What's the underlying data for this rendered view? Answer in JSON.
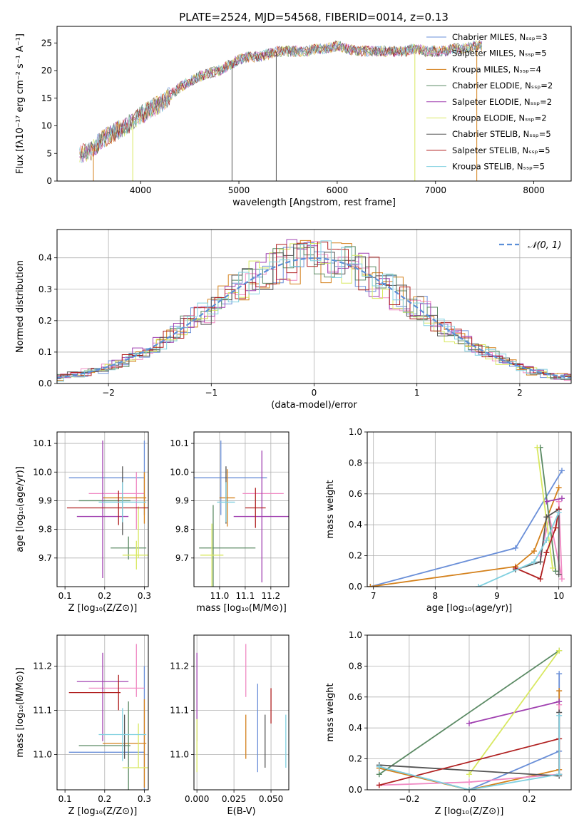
{
  "figure": {
    "title": "PLATE=2524, MJD=54568, FIBERID=0014, z=0.13"
  },
  "legend_entries": [
    {
      "label": "Chabrier MILES, Nₛₛₚ=3",
      "color": "#6a8fd8"
    },
    {
      "label": "Salpeter MILES, Nₛₛₚ=5",
      "color": "#f08ac4"
    },
    {
      "label": "Kroupa MILES, Nₛₛₚ=4",
      "color": "#d4811c"
    },
    {
      "label": "Chabrier ELODIE, Nₛₛₚ=2",
      "color": "#5b8a64"
    },
    {
      "label": "Salpeter ELODIE, Nₛₛₚ=2",
      "color": "#a040b0"
    },
    {
      "label": "Kroupa ELODIE, Nₛₛₚ=2",
      "color": "#d8e860"
    },
    {
      "label": "Chabrier STELIB, Nₛₛₚ=5",
      "color": "#555555"
    },
    {
      "label": "Salpeter STELIB, Nₛₛₚ=5",
      "color": "#b02020"
    },
    {
      "label": "Kroupa STELIB, Nₛₛₚ=5",
      "color": "#80d0e0"
    }
  ],
  "chart_data": [
    {
      "type": "line",
      "id": "spectrum",
      "xlabel": "wavelength [Angstrom, rest frame]",
      "ylabel": "Flux [fλ10⁻¹⁷ erg cm⁻² s⁻¹ A⁻¹]",
      "xlim": [
        3150,
        8380
      ],
      "ylim": [
        0,
        28
      ],
      "xticks": [
        4000,
        5000,
        6000,
        7000,
        8000
      ],
      "yticks": [
        0,
        5,
        10,
        15,
        20,
        25
      ],
      "grid": false,
      "legend": "top-right",
      "series_points": {
        "x": [
          3380,
          3500,
          3600,
          3700,
          3800,
          3900,
          4000,
          4100,
          4200,
          4300,
          4400,
          4500,
          4600,
          4700,
          4800,
          4900,
          5000,
          5100,
          5200,
          5300,
          5400,
          5500,
          5600,
          5700,
          5800,
          5900,
          6000,
          6100,
          6200,
          6300,
          6400,
          6500,
          6600,
          6700,
          6800,
          6900,
          7000,
          7100,
          7200,
          7300,
          7400
        ],
        "y": [
          5,
          5.5,
          7.5,
          8.5,
          9.5,
          10.5,
          12,
          13,
          14,
          15.5,
          17,
          18,
          19,
          19.5,
          20,
          21,
          22,
          22.5,
          22.5,
          23,
          23.5,
          23.5,
          23.5,
          23.5,
          24,
          24,
          24.5,
          24,
          23.5,
          23.5,
          23.5,
          23.5,
          23.5,
          23.5,
          24,
          23.5,
          23.5,
          23.5,
          24,
          24,
          24.5
        ]
      },
      "drop_lines": [
        3520,
        3920,
        4930,
        5380,
        6790,
        7420
      ]
    },
    {
      "type": "line",
      "id": "residual-hist",
      "xlabel": "(data-model)/error",
      "ylabel": "Normed distribution",
      "xlim": [
        -2.5,
        2.5
      ],
      "ylim": [
        0,
        0.49
      ],
      "xticks": [
        -2,
        -1,
        0,
        1,
        2
      ],
      "yticks": [
        0.0,
        0.1,
        0.2,
        0.3,
        0.4
      ],
      "grid": true,
      "legend": "top-right",
      "reference_label": "𝒩(0, 1)",
      "reference": {
        "mean": 0,
        "sigma": 1
      }
    },
    {
      "type": "scatter",
      "id": "z-age",
      "xlabel": "Z [log₁₀(Z/Z⊙)]",
      "ylabel": "age  [log₁₀(age/yr)]",
      "xlim": [
        0.08,
        0.31
      ],
      "ylim": [
        9.6,
        10.14
      ],
      "xticks": [
        0.1,
        0.2,
        0.3
      ],
      "yticks": [
        9.7,
        9.8,
        9.9,
        10.0,
        10.1
      ],
      "grid": true,
      "points": [
        {
          "x": 0.205,
          "y": 9.98,
          "xerr": 0.095,
          "yerr": 0.0,
          "color": "#6a8fd8"
        },
        {
          "x": 0.3,
          "y": 9.98,
          "xerr": 0.0,
          "yerr": 0.13,
          "color": "#6a8fd8"
        },
        {
          "x": 0.23,
          "y": 9.925,
          "xerr": 0.07,
          "yerr": 0.0,
          "color": "#f08ac4"
        },
        {
          "x": 0.28,
          "y": 9.9,
          "xerr": 0.0,
          "yerr": 0.1,
          "color": "#f08ac4"
        },
        {
          "x": 0.25,
          "y": 9.91,
          "xerr": 0.055,
          "yerr": 0.0,
          "color": "#d4811c"
        },
        {
          "x": 0.3,
          "y": 9.91,
          "xerr": 0.0,
          "yerr": 0.09,
          "color": "#d4811c"
        },
        {
          "x": 0.2,
          "y": 9.9,
          "xerr": 0.065,
          "yerr": 0.0,
          "color": "#5b8a64"
        },
        {
          "x": 0.26,
          "y": 9.735,
          "xerr": 0.045,
          "yerr": 0.04,
          "color": "#5b8a64"
        },
        {
          "x": 0.195,
          "y": 9.845,
          "xerr": 0.065,
          "yerr": 0.0,
          "color": "#a040b0"
        },
        {
          "x": 0.195,
          "y": 9.87,
          "xerr": 0.0,
          "yerr": 0.24,
          "color": "#a040b0"
        },
        {
          "x": 0.28,
          "y": 9.71,
          "xerr": 0.035,
          "yerr": 0.05,
          "color": "#d8e860"
        },
        {
          "x": 0.285,
          "y": 9.79,
          "xerr": 0.0,
          "yerr": 0.09,
          "color": "#d8e860"
        },
        {
          "x": 0.245,
          "y": 9.9,
          "xerr": 0.0,
          "yerr": 0.12,
          "color": "#555555"
        },
        {
          "x": 0.235,
          "y": 9.875,
          "xerr": 0.13,
          "yerr": 0.0,
          "color": "#b02020"
        },
        {
          "x": 0.235,
          "y": 9.875,
          "xerr": 0.0,
          "yerr": 0.06,
          "color": "#b02020"
        },
        {
          "x": 0.245,
          "y": 9.895,
          "xerr": 0.06,
          "yerr": 0.07,
          "color": "#80d0e0"
        }
      ]
    },
    {
      "type": "scatter",
      "id": "mass-age",
      "xlabel": "mass [log₁₀(M/M⊙)]",
      "ylabel": "",
      "xlim": [
        10.9,
        11.27
      ],
      "ylim": [
        9.6,
        10.14
      ],
      "xticks": [
        11.0,
        11.1,
        11.2
      ],
      "yticks": [
        9.7,
        9.8,
        9.9,
        10.0,
        10.1
      ],
      "grid": true,
      "points": [
        {
          "x": 11.005,
          "y": 9.98,
          "xerr": 0.18,
          "yerr": 0.13,
          "color": "#6a8fd8"
        },
        {
          "x": 11.17,
          "y": 9.925,
          "xerr": 0.08,
          "yerr": 0.0,
          "color": "#f08ac4"
        },
        {
          "x": 11.03,
          "y": 9.91,
          "xerr": 0.03,
          "yerr": 0.1,
          "color": "#d4811c"
        },
        {
          "x": 11.03,
          "y": 9.735,
          "xerr": 0.11,
          "yerr": 0.0,
          "color": "#5b8a64"
        },
        {
          "x": 10.975,
          "y": 9.735,
          "xerr": 0.0,
          "yerr": 0.15,
          "color": "#5b8a64"
        },
        {
          "x": 11.165,
          "y": 9.845,
          "xerr": 0.11,
          "yerr": 0.23,
          "color": "#a040b0"
        },
        {
          "x": 10.97,
          "y": 9.71,
          "xerr": 0.045,
          "yerr": 0.11,
          "color": "#d8e860"
        },
        {
          "x": 11.025,
          "y": 9.92,
          "xerr": 0.0,
          "yerr": 0.1,
          "color": "#555555"
        },
        {
          "x": 11.14,
          "y": 9.875,
          "xerr": 0.04,
          "yerr": 0.07,
          "color": "#b02020"
        },
        {
          "x": 11.025,
          "y": 9.895,
          "xerr": 0.035,
          "yerr": 0.07,
          "color": "#80d0e0"
        }
      ]
    },
    {
      "type": "line",
      "id": "age-massweight",
      "xlabel": "age  [log₁₀(age/yr)]",
      "ylabel": "mass weight",
      "xlim": [
        6.9,
        10.2
      ],
      "ylim": [
        0,
        1.0
      ],
      "xticks": [
        7,
        8,
        9,
        10
      ],
      "yticks": [
        0.0,
        0.2,
        0.4,
        0.6,
        0.8,
        1.0
      ],
      "grid": true,
      "series": [
        {
          "color": "#6a8fd8",
          "x": [
            6.95,
            9.3,
            10.05
          ],
          "y": [
            0.0,
            0.25,
            0.75
          ]
        },
        {
          "color": "#d4811c",
          "x": [
            6.95,
            9.3,
            9.6,
            10.0
          ],
          "y": [
            0.0,
            0.13,
            0.23,
            0.64
          ]
        },
        {
          "color": "#f08ac4",
          "x": [
            9.7,
            9.85,
            10.05,
            10.0
          ],
          "y": [
            0.2,
            0.45,
            0.05,
            0.55
          ]
        },
        {
          "color": "#5b8a64",
          "x": [
            9.7,
            9.95
          ],
          "y": [
            0.9,
            0.1
          ]
        },
        {
          "color": "#a040b0",
          "x": [
            9.8,
            10.05
          ],
          "y": [
            0.55,
            0.57
          ]
        },
        {
          "color": "#d8e860",
          "x": [
            9.65,
            9.9
          ],
          "y": [
            0.9,
            0.12
          ]
        },
        {
          "color": "#555555",
          "x": [
            9.3,
            9.7,
            9.8,
            10.0,
            10.0
          ],
          "y": [
            0.11,
            0.16,
            0.45,
            0.5,
            0.08
          ]
        },
        {
          "color": "#b02020",
          "x": [
            9.3,
            9.7,
            9.8,
            9.95,
            10.0
          ],
          "y": [
            0.12,
            0.05,
            0.22,
            0.38,
            0.5
          ]
        },
        {
          "color": "#80d0e0",
          "x": [
            8.7,
            9.6,
            9.8,
            10.0
          ],
          "y": [
            0.0,
            0.16,
            0.3,
            0.48
          ]
        }
      ]
    },
    {
      "type": "scatter",
      "id": "z-mass",
      "xlabel": "Z [log₁₀(Z/Z⊙)]",
      "ylabel": "mass [log₁₀(M/M⊙)]",
      "xlim": [
        0.08,
        0.31
      ],
      "ylim": [
        10.92,
        11.27
      ],
      "xticks": [
        0.1,
        0.2,
        0.3
      ],
      "yticks": [
        11.0,
        11.1,
        11.2
      ],
      "grid": true,
      "points": [
        {
          "x": 0.205,
          "y": 11.005,
          "xerr": 0.095,
          "yerr": 0.0,
          "color": "#6a8fd8"
        },
        {
          "x": 0.3,
          "y": 11.06,
          "xerr": 0.0,
          "yerr": 0.14,
          "color": "#6a8fd8"
        },
        {
          "x": 0.23,
          "y": 11.15,
          "xerr": 0.07,
          "yerr": 0.0,
          "color": "#f08ac4"
        },
        {
          "x": 0.28,
          "y": 11.19,
          "xerr": 0.0,
          "yerr": 0.06,
          "color": "#f08ac4"
        },
        {
          "x": 0.25,
          "y": 11.025,
          "xerr": 0.055,
          "yerr": 0.0,
          "color": "#d4811c"
        },
        {
          "x": 0.3,
          "y": 11.025,
          "xerr": 0.0,
          "yerr": 0.1,
          "color": "#d4811c"
        },
        {
          "x": 0.2,
          "y": 11.02,
          "xerr": 0.065,
          "yerr": 0.0,
          "color": "#5b8a64"
        },
        {
          "x": 0.26,
          "y": 11.02,
          "xerr": 0.0,
          "yerr": 0.1,
          "color": "#5b8a64"
        },
        {
          "x": 0.195,
          "y": 11.165,
          "xerr": 0.065,
          "yerr": 0.0,
          "color": "#a040b0"
        },
        {
          "x": 0.195,
          "y": 11.13,
          "xerr": 0.0,
          "yerr": 0.1,
          "color": "#a040b0"
        },
        {
          "x": 0.28,
          "y": 10.97,
          "xerr": 0.035,
          "yerr": 0.0,
          "color": "#d8e860"
        },
        {
          "x": 0.285,
          "y": 11.02,
          "xerr": 0.0,
          "yerr": 0.05,
          "color": "#d8e860"
        },
        {
          "x": 0.25,
          "y": 11.04,
          "xerr": 0.0,
          "yerr": 0.05,
          "color": "#555555"
        },
        {
          "x": 0.175,
          "y": 11.14,
          "xerr": 0.065,
          "yerr": 0.0,
          "color": "#b02020"
        },
        {
          "x": 0.235,
          "y": 11.14,
          "xerr": 0.0,
          "yerr": 0.04,
          "color": "#b02020"
        },
        {
          "x": 0.245,
          "y": 11.045,
          "xerr": 0.06,
          "yerr": 0.06,
          "color": "#80d0e0"
        }
      ]
    },
    {
      "type": "scatter",
      "id": "ebv-mass",
      "xlabel": "E(B-V)",
      "ylabel": "",
      "xlim": [
        -0.002,
        0.062
      ],
      "ylim": [
        10.92,
        11.27
      ],
      "xticks": [
        0.0,
        0.025,
        0.05
      ],
      "xticklabels": [
        "0.000",
        "0.025",
        "0.050"
      ],
      "yticks": [
        11.0,
        11.1,
        11.2
      ],
      "grid": true,
      "points": [
        {
          "x": 0.0,
          "y": 11.13,
          "xerr": 0.0,
          "yerr": 0.1,
          "color": "#a040b0"
        },
        {
          "x": 0.0,
          "y": 11.02,
          "xerr": 0.0,
          "yerr": 0.06,
          "color": "#d8e860"
        },
        {
          "x": 0.033,
          "y": 11.19,
          "xerr": 0.0,
          "yerr": 0.06,
          "color": "#f08ac4"
        },
        {
          "x": 0.033,
          "y": 11.04,
          "xerr": 0.0,
          "yerr": 0.05,
          "color": "#d4811c"
        },
        {
          "x": 0.041,
          "y": 11.06,
          "xerr": 0.0,
          "yerr": 0.1,
          "color": "#6a8fd8"
        },
        {
          "x": 0.046,
          "y": 11.03,
          "xerr": 0.0,
          "yerr": 0.06,
          "color": "#555555"
        },
        {
          "x": 0.05,
          "y": 11.11,
          "xerr": 0.0,
          "yerr": 0.04,
          "color": "#b02020"
        },
        {
          "x": 0.06,
          "y": 11.03,
          "xerr": 0.0,
          "yerr": 0.06,
          "color": "#80d0e0"
        }
      ]
    },
    {
      "type": "line",
      "id": "z-massweight",
      "xlabel": "Z [log₁₀(Z/Z⊙)]",
      "ylabel": "mass weight",
      "xlim": [
        -0.34,
        0.34
      ],
      "ylim": [
        0,
        1.0
      ],
      "xticks": [
        -0.2,
        0.0,
        0.2
      ],
      "yticks": [
        0.0,
        0.2,
        0.4,
        0.6,
        0.8,
        1.0
      ],
      "grid": true,
      "series": [
        {
          "color": "#6a8fd8",
          "x": [
            -0.3,
            0.0,
            0.3,
            0.3
          ],
          "y": [
            0.15,
            0.0,
            0.25,
            0.75
          ]
        },
        {
          "color": "#d4811c",
          "x": [
            -0.3,
            0.0,
            0.3,
            0.3
          ],
          "y": [
            0.14,
            0.0,
            0.13,
            0.64
          ]
        },
        {
          "color": "#f08ac4",
          "x": [
            -0.3,
            0.0,
            0.3,
            0.3
          ],
          "y": [
            0.03,
            0.05,
            0.1,
            0.55
          ]
        },
        {
          "color": "#5b8a64",
          "x": [
            -0.3,
            0.3
          ],
          "y": [
            0.1,
            0.9
          ]
        },
        {
          "color": "#a040b0",
          "x": [
            0.0,
            0.3
          ],
          "y": [
            0.43,
            0.57
          ]
        },
        {
          "color": "#d8e860",
          "x": [
            0.0,
            0.3
          ],
          "y": [
            0.1,
            0.9
          ]
        },
        {
          "color": "#555555",
          "x": [
            -0.3,
            0.3,
            0.3
          ],
          "y": [
            0.16,
            0.09,
            0.5
          ]
        },
        {
          "color": "#b02020",
          "x": [
            -0.3,
            0.3,
            0.3
          ],
          "y": [
            0.03,
            0.33,
            0.1
          ]
        },
        {
          "color": "#80d0e0",
          "x": [
            -0.3,
            0.0,
            0.3,
            0.3
          ],
          "y": [
            0.15,
            0.0,
            0.1,
            0.48
          ]
        }
      ]
    }
  ]
}
